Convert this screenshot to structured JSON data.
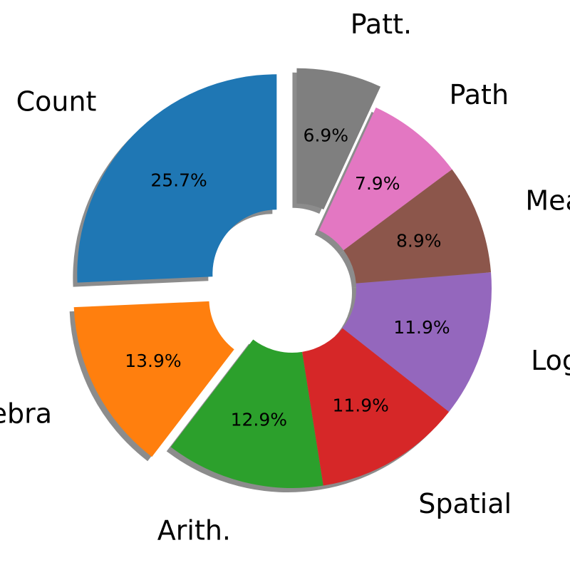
{
  "chart_data": {
    "type": "pie",
    "donut": true,
    "shadow": true,
    "start": "top, counterclockwise",
    "categories": [
      "Count",
      "Algebra",
      "Arith.",
      "Spatial",
      "Logic",
      "Measure",
      "Path",
      "Patt."
    ],
    "values": [
      25.7,
      13.9,
      12.9,
      11.9,
      11.9,
      8.9,
      7.9,
      6.9
    ],
    "percent_labels": [
      "25.7%",
      "13.9%",
      "12.9%",
      "11.9%",
      "11.9%",
      "8.9%",
      "7.9%",
      "6.9%"
    ],
    "exploded": [
      "Count",
      "Algebra",
      "Patt."
    ],
    "colors": [
      "#1f77b4",
      "#ff7f0e",
      "#2ca02c",
      "#d62728",
      "#9467bd",
      "#8c564b",
      "#e377c2",
      "#7f7f7f"
    ]
  }
}
